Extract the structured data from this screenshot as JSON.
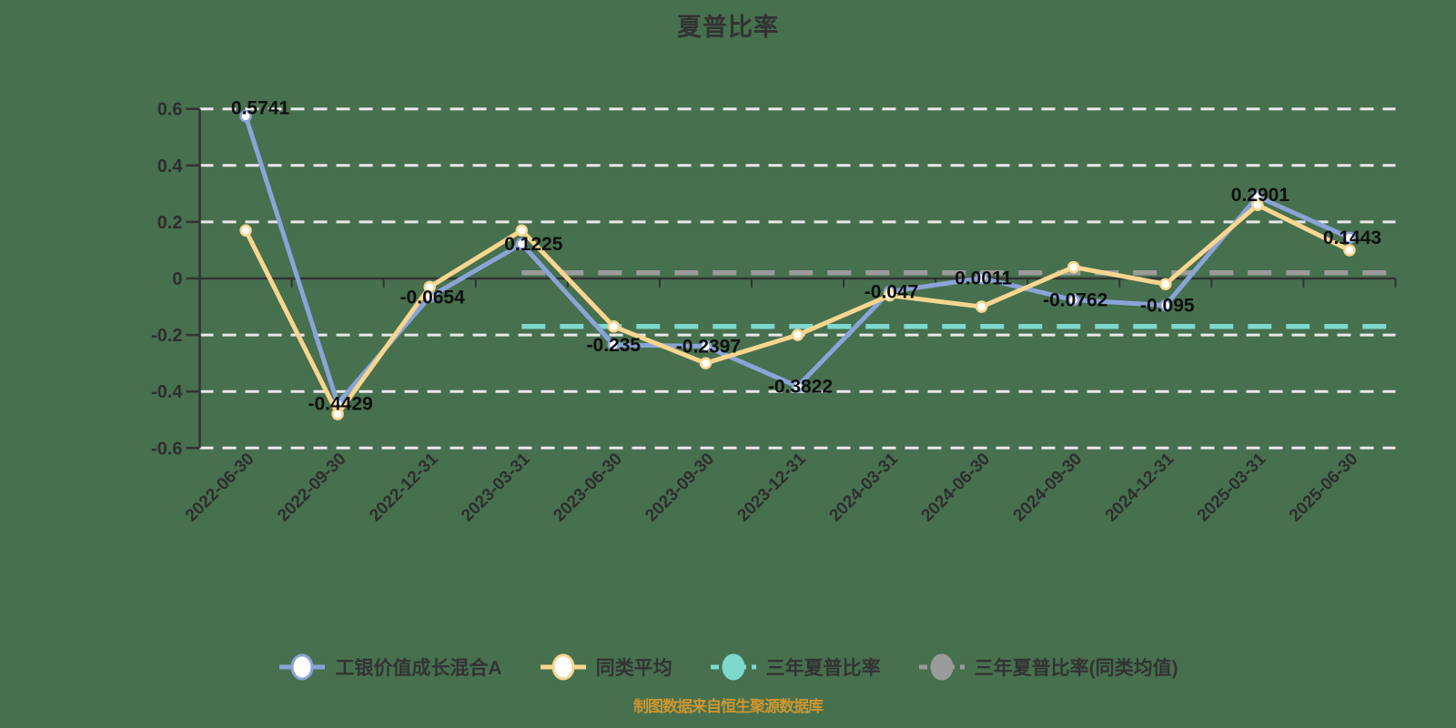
{
  "title": "夏普比率",
  "footer": "制图数据来自恒生聚源数据库",
  "colors": {
    "background": "#47704e",
    "fund": "#8aa4d8",
    "peer": "#f8d68f",
    "three_year": "#7ed8cd",
    "three_year_peer": "#9b9b9b",
    "grid": "#e8e8e8",
    "axis": "#333333",
    "axis_text": "#2e2e2e",
    "data_label": "#0f0f0f",
    "footer_text": "#cc9630"
  },
  "legend": [
    {
      "label": "工银价值成长混合A",
      "color": "#8aa4d8",
      "marker": "hollow"
    },
    {
      "label": "同类平均",
      "color": "#f8d68f",
      "marker": "hollow"
    },
    {
      "label": "三年夏普比率",
      "color": "#7ed8cd",
      "marker": "solid"
    },
    {
      "label": "三年夏普比率(同类均值)",
      "color": "#9b9b9b",
      "marker": "solid"
    }
  ],
  "chart_data": {
    "type": "line",
    "title": "夏普比率",
    "categories": [
      "2022-06-30",
      "2022-09-30",
      "2022-12-31",
      "2023-03-31",
      "2023-06-30",
      "2023-09-30",
      "2023-12-31",
      "2024-03-31",
      "2024-06-30",
      "2024-09-30",
      "2024-12-31",
      "2025-03-31",
      "2025-06-30"
    ],
    "series": [
      {
        "name": "工银价值成长混合A",
        "kind": "line",
        "color": "#8aa4d8",
        "marker": "hollow-circle",
        "show_labels": true,
        "values": [
          0.5741,
          -0.4429,
          -0.0654,
          0.1225,
          -0.235,
          -0.2397,
          -0.3822,
          -0.047,
          0.0011,
          -0.0762,
          -0.095,
          0.2901,
          0.1443
        ]
      },
      {
        "name": "同类平均",
        "kind": "line",
        "color": "#f8d68f",
        "marker": "hollow-circle",
        "show_labels": false,
        "values": [
          0.17,
          -0.48,
          -0.03,
          0.17,
          -0.17,
          -0.3,
          -0.2,
          -0.06,
          -0.1,
          0.04,
          -0.02,
          0.26,
          0.1
        ]
      },
      {
        "name": "三年夏普比率",
        "kind": "constant-dashed",
        "color": "#7ed8cd",
        "value": -0.17,
        "start_category_index": 3
      },
      {
        "name": "三年夏普比率(同类均值)",
        "kind": "constant-dashed",
        "color": "#9b9b9b",
        "value": 0.02,
        "start_category_index": 3
      }
    ],
    "ylim": [
      -0.6,
      0.6
    ],
    "ytick_labels": [
      "0.6",
      "0.4",
      "0.2",
      "0",
      "-0.2",
      "-0.4",
      "-0.6"
    ],
    "grid": "horizontal-dashed",
    "legend_position": "bottom"
  }
}
